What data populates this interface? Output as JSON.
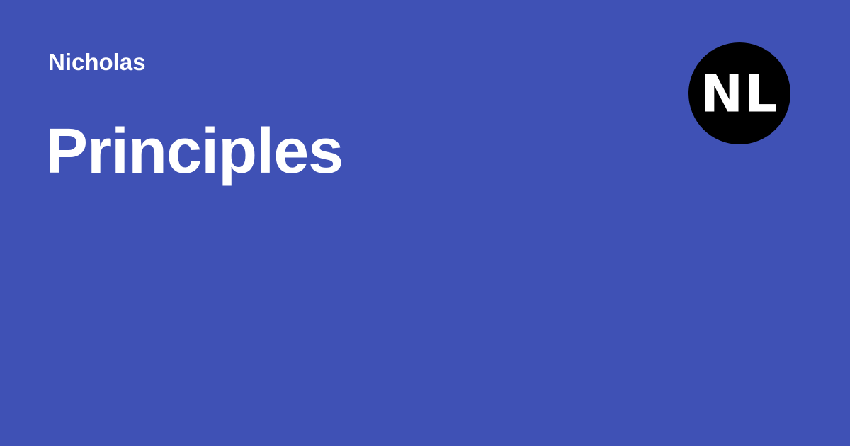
{
  "header": {
    "site_name": "Nicholas",
    "logo_text": "NL"
  },
  "main": {
    "title": "Principles"
  },
  "colors": {
    "background": "#3f51b5",
    "text": "#ffffff",
    "logo_background": "#000000",
    "logo_text": "#ffffff"
  },
  "icons": {
    "logo": "nl-monogram-logo"
  }
}
